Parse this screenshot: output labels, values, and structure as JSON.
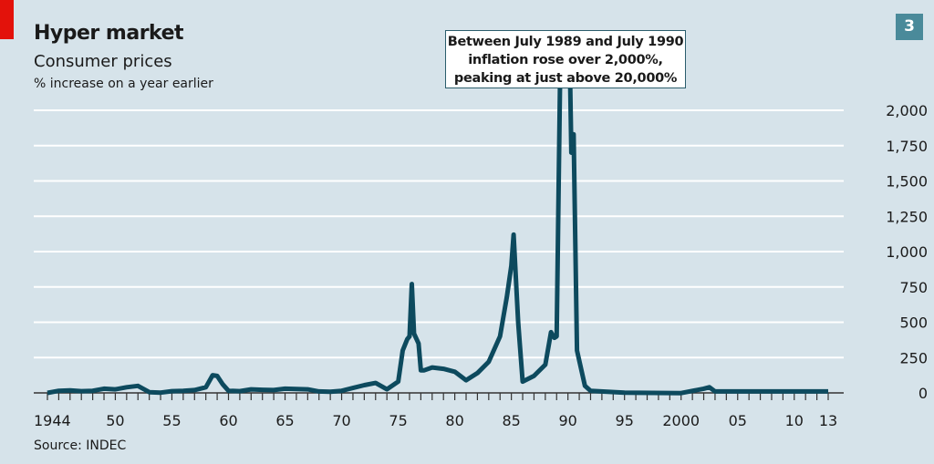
{
  "header": {
    "title": "Hyper market",
    "subtitle": "Consumer prices",
    "unit": "% increase on a year earlier",
    "chart_number": "3"
  },
  "source": "Source: INDEC",
  "annotation": [
    "Between July 1989 and July 1990",
    "inflation rose over 2,000%,",
    "peaking at just above 20,000%"
  ],
  "colors": {
    "background": "#d6e3ea",
    "line": "#0d4a5e",
    "accent": "#e3120b"
  },
  "chart_data": {
    "type": "line",
    "title": "Hyper market",
    "subtitle": "Consumer prices",
    "ylabel": "% increase on a year earlier",
    "xlim": [
      1944,
      2013
    ],
    "ylim": [
      0,
      2000
    ],
    "y_axis_side": "right",
    "grid": true,
    "yticks": [
      0,
      250,
      500,
      750,
      1000,
      1250,
      1500,
      1750,
      2000
    ],
    "ytick_labels": [
      "0",
      "250",
      "500",
      "750",
      "1,000",
      "1,250",
      "1,500",
      "1,750",
      "2,000"
    ],
    "xticks": [
      1944,
      1950,
      1955,
      1960,
      1965,
      1970,
      1975,
      1980,
      1985,
      1990,
      1995,
      2000,
      2005,
      2010,
      2013
    ],
    "xtick_labels": [
      "1944",
      "50",
      "55",
      "60",
      "65",
      "70",
      "75",
      "80",
      "85",
      "90",
      "95",
      "2000",
      "05",
      "10",
      "13"
    ],
    "series": [
      {
        "x": [
          1944,
          1945,
          1946,
          1947,
          1948,
          1949,
          1950,
          1951,
          1952,
          1953,
          1954,
          1955,
          1956,
          1957,
          1958,
          1958.6,
          1959,
          1959.5,
          1960,
          1961,
          1962,
          1963,
          1964,
          1965,
          1966,
          1967,
          1968,
          1969,
          1970,
          1971,
          1972,
          1973,
          1974,
          1975,
          1975.4,
          1975.8,
          1976,
          1976.2,
          1976.4,
          1976.8,
          1977,
          1977.3,
          1978,
          1979,
          1980,
          1981,
          1982,
          1983,
          1984,
          1984.6,
          1985,
          1985.2,
          1985.6,
          1986,
          1987,
          1988,
          1988.5,
          1988.8,
          1989,
          1989.3,
          1990.2,
          1990.3,
          1990.5,
          1990.8,
          1991.5,
          1992,
          1995,
          2000,
          2002,
          2002.5,
          2003,
          2013
        ],
        "y": [
          0,
          15,
          18,
          12,
          15,
          30,
          25,
          40,
          50,
          5,
          2,
          12,
          15,
          20,
          40,
          125,
          120,
          60,
          15,
          12,
          25,
          22,
          20,
          30,
          28,
          25,
          10,
          8,
          15,
          35,
          55,
          70,
          25,
          80,
          300,
          380,
          400,
          770,
          420,
          350,
          160,
          160,
          180,
          170,
          150,
          90,
          140,
          220,
          400,
          680,
          900,
          1120,
          500,
          80,
          120,
          200,
          430,
          390,
          400,
          2200,
          2200,
          1700,
          1830,
          300,
          50,
          15,
          2,
          -1,
          30,
          40,
          10,
          10
        ]
      }
    ]
  }
}
